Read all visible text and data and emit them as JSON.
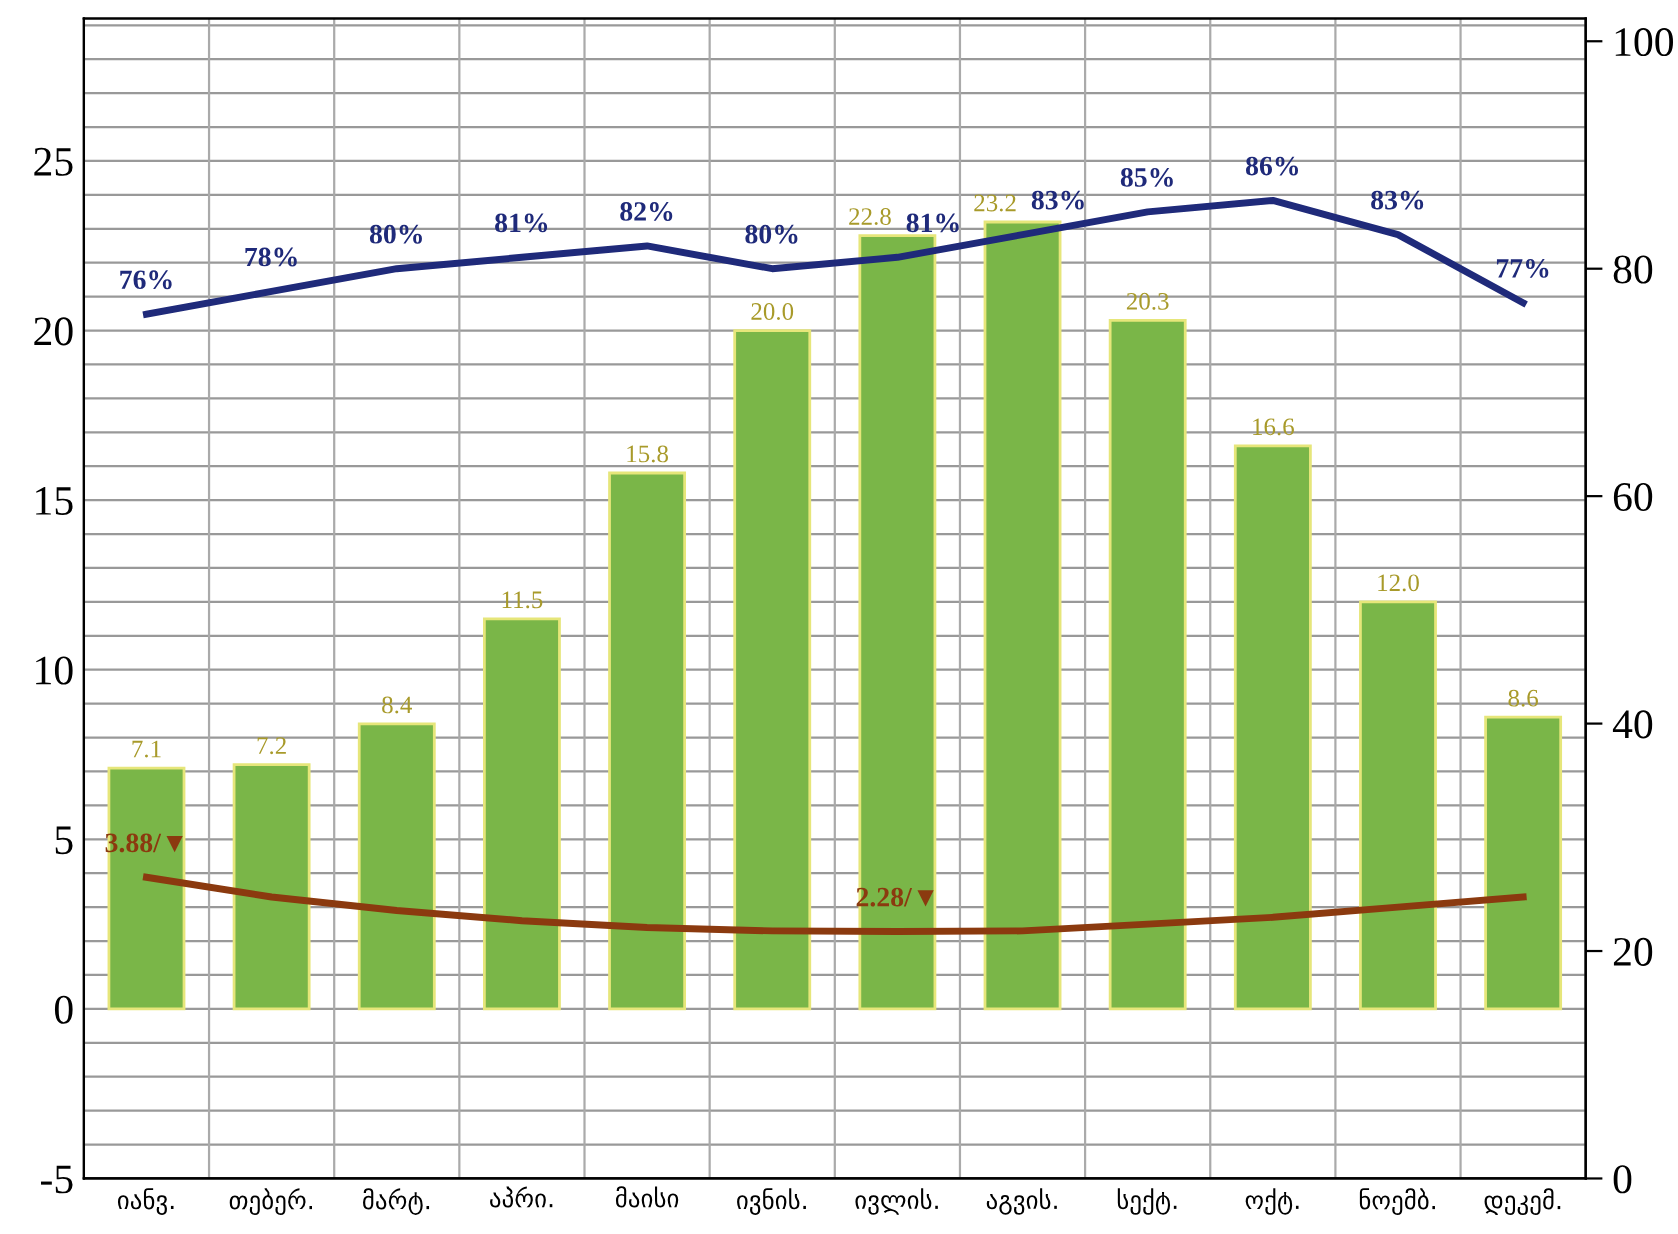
{
  "chart_data": {
    "type": "bar",
    "categories": [
      "იანვ.",
      "თებერ.",
      "მარტ.",
      "აპრი.",
      "მაისი",
      "ივნის.",
      "ივლის.",
      "აგვის.",
      "სექტ.",
      "ოქტ.",
      "ნოემბ.",
      "დეკემ."
    ],
    "series": [
      {
        "color": "#7ab648",
        "values": [
          7.1,
          7.2,
          8.4,
          11.5,
          15.8,
          20.0,
          22.8,
          23.2,
          20.3,
          16.6,
          12.0,
          8.6
        ],
        "value_labels": [
          "7.1",
          "7.2",
          "8.4",
          "11.5",
          "15.8",
          "20.0",
          "22.8",
          "23.2",
          "20.3",
          "16.6",
          "12.0",
          "8.6"
        ]
      },
      {
        "type": "line",
        "axis": "y2",
        "color": "#1f2a7a",
        "values": [
          76,
          78,
          80,
          81,
          82,
          80,
          81,
          83,
          85,
          86,
          83,
          77
        ],
        "value_labels": [
          "76%",
          "78%",
          "80%",
          "81%",
          "82%",
          "80%",
          "81%",
          "83%",
          "85%",
          "86%",
          "83%",
          "77%"
        ]
      },
      {
        "type": "line",
        "color": "#8b3a0f",
        "values": [
          3.88,
          3.3,
          2.9,
          2.6,
          2.4,
          2.3,
          2.28,
          2.3,
          2.5,
          2.7,
          3.0,
          3.3
        ],
        "value_labels": [
          "3.88/▼",
          null,
          null,
          null,
          null,
          null,
          "2.28/▼",
          null,
          null,
          null,
          null,
          null
        ]
      }
    ],
    "ylim": [
      -5,
      29.2
    ],
    "yticks": [
      -5,
      0,
      5,
      10,
      15,
      20,
      25
    ],
    "y2lim": [
      0,
      102
    ],
    "y2ticks": [
      0,
      20,
      40,
      60,
      80,
      100
    ],
    "grid": true,
    "legend": false,
    "marker": "none",
    "line_style": "solid"
  }
}
